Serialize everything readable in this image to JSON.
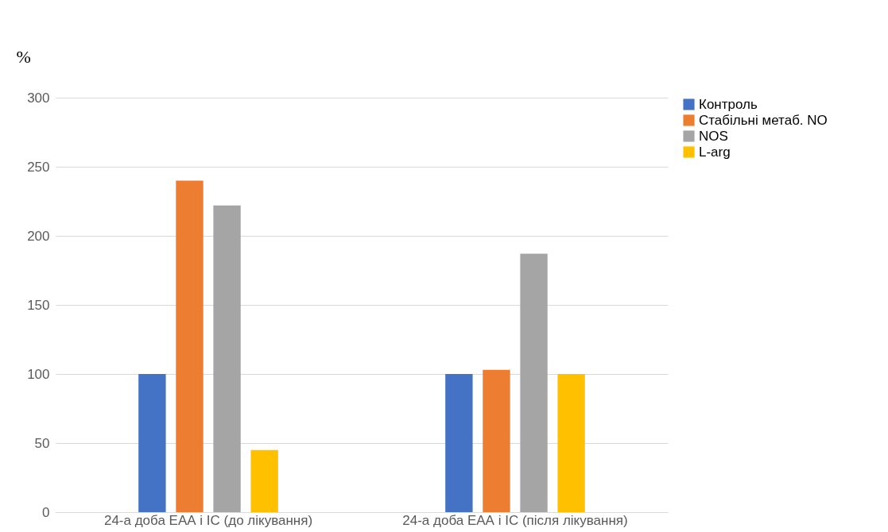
{
  "chart_data": {
    "type": "bar",
    "ylabel": "%",
    "categories": [
      "24-а доба ЕАА і ІС (до лікування)",
      "24-а доба ЕАА і ІС (після лікування)"
    ],
    "series": [
      {
        "name": "Контроль",
        "color": "#4472c4",
        "values": [
          100,
          100
        ]
      },
      {
        "name": "Стабільні метаб. NO",
        "color": "#ed7d31",
        "values": [
          240,
          103
        ]
      },
      {
        "name": "NOS",
        "color": "#a5a5a5",
        "values": [
          222,
          187
        ]
      },
      {
        "name": "L-arg",
        "color": "#ffc000",
        "values": [
          45,
          100
        ]
      }
    ],
    "ylim": [
      0,
      300
    ],
    "yticks": [
      0,
      50,
      100,
      150,
      200,
      250,
      300
    ],
    "grid": "y",
    "legend": "right"
  }
}
